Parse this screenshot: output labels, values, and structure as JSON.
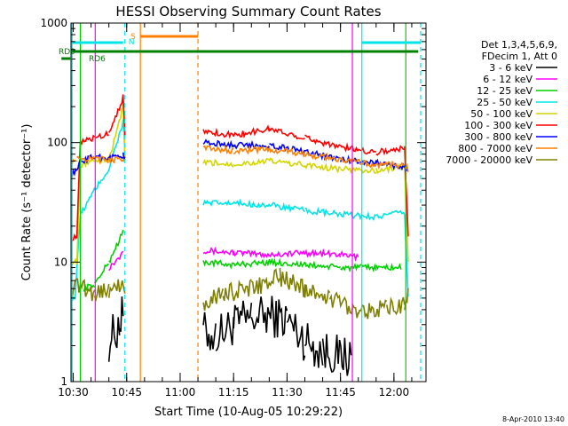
{
  "chart_data": {
    "type": "line",
    "title": "HESSI Observing Summary Count Rates",
    "xlabel": "Start Time (10-Aug-05 10:29:22)",
    "ylabel": "Count Rate (s⁻¹ detector⁻¹)",
    "y_scale": "log",
    "ylim": [
      1,
      1000
    ],
    "xlim": [
      "10:29:22",
      "12:09:00"
    ],
    "x_ticks": [
      "10:30",
      "10:45",
      "11:00",
      "11:15",
      "11:30",
      "11:45",
      "12:00"
    ],
    "y_ticks": [
      "1",
      "10",
      "100",
      "1000"
    ],
    "grid": false,
    "legend_position": "right",
    "legend_header": [
      "Det 1,3,4,5,6,9,",
      "FDecim 1, Att 0"
    ],
    "timestamp": "8-Apr-2010 13:40",
    "flags": {
      "rd0_label": "RD0",
      "rd6_label": "RD6",
      "s_label": "S",
      "n_label": "N",
      "rd0_intervals": [
        [
          "10:29:40",
          "12:06:50"
        ]
      ],
      "rd6_intervals": [
        [
          "10:29:40",
          "12:06:50"
        ]
      ],
      "saa_interval": [
        "10:48:50",
        "11:05:00"
      ],
      "night_intervals": [
        [
          "10:29:40",
          "10:44:00"
        ],
        [
          "11:51:00",
          "12:07:30"
        ]
      ]
    },
    "vertical_markers": [
      {
        "time": "10:29:40",
        "style": "solid",
        "color": "#00e5e5"
      },
      {
        "time": "10:44:30",
        "style": "dashed",
        "color": "#00e5e5"
      },
      {
        "time": "11:51:00",
        "style": "solid",
        "color": "#00e5e5"
      },
      {
        "time": "12:07:30",
        "style": "dashed",
        "color": "#00e5e5"
      },
      {
        "time": "10:48:50",
        "style": "solid",
        "color": "#ff8000"
      },
      {
        "time": "11:05:00",
        "style": "dashed",
        "color": "#ff8000"
      },
      {
        "time": "10:36:10",
        "style": "solid",
        "color": "#ff00ff"
      },
      {
        "time": "11:48:20",
        "style": "solid",
        "color": "#ff00ff"
      },
      {
        "time": "10:32:00",
        "style": "solid",
        "color": "#00d000"
      },
      {
        "time": "12:03:20",
        "style": "solid",
        "color": "#00d000"
      }
    ],
    "series": [
      {
        "name": "3 - 6 keV",
        "color": "#000000",
        "x": [
          "10:40:00",
          "10:43:00",
          "10:44:00",
          "11:06:30",
          "11:10:00",
          "11:15:00",
          "11:20:00",
          "11:25:00",
          "11:30:00",
          "11:35:00",
          "11:40:00",
          "11:44:00",
          "11:48:00"
        ],
        "y": [
          2.2,
          3.0,
          3.8,
          2.6,
          2.4,
          3.0,
          3.4,
          3.6,
          3.3,
          2.2,
          1.8,
          1.7,
          1.6
        ]
      },
      {
        "name": "6 - 12 keV",
        "color": "#ff00ff",
        "x": [
          "10:40:00",
          "10:43:00",
          "10:44:00",
          "11:06:30",
          "11:15:00",
          "11:25:00",
          "11:35:00",
          "11:45:00",
          "11:50:00"
        ],
        "y": [
          9,
          11,
          13,
          12.5,
          12,
          11.5,
          12,
          11.5,
          11
        ]
      },
      {
        "name": "12 - 25 keV",
        "color": "#00d000",
        "x": [
          "10:33:00",
          "10:36:00",
          "10:40:00",
          "10:44:00",
          "11:06:30",
          "11:15:00",
          "11:25:00",
          "11:35:00",
          "11:45:00",
          "11:55:00",
          "12:02:00"
        ],
        "y": [
          6,
          6.5,
          10,
          18,
          10,
          9.5,
          10,
          9.5,
          9,
          9,
          9
        ]
      },
      {
        "name": "25 - 50 keV",
        "color": "#00e5e5",
        "x": [
          "10:29:40",
          "10:30:30",
          "10:32:00",
          "10:36:00",
          "10:40:00",
          "10:44:00",
          "10:44:30",
          "11:06:30",
          "11:15:00",
          "11:25:00",
          "11:35:00",
          "11:45:00",
          "11:55:00",
          "12:03:00",
          "12:04:00"
        ],
        "y": [
          5,
          5,
          25,
          40,
          60,
          150,
          80,
          31,
          31,
          30,
          27,
          25,
          24,
          26,
          5
        ]
      },
      {
        "name": "50 - 100 keV",
        "color": "#d4d400",
        "x": [
          "10:29:40",
          "10:31:00",
          "10:32:00",
          "10:36:00",
          "10:40:00",
          "10:44:00",
          "10:44:30",
          "11:06:30",
          "11:15:00",
          "11:25:00",
          "11:35:00",
          "11:45:00",
          "11:55:00",
          "12:03:00",
          "12:04:00"
        ],
        "y": [
          10,
          10,
          65,
          72,
          70,
          200,
          72,
          68,
          66,
          70,
          65,
          60,
          58,
          63,
          10
        ]
      },
      {
        "name": "100 - 300 keV",
        "color": "#ff0000",
        "x": [
          "10:29:40",
          "10:31:00",
          "10:32:00",
          "10:36:00",
          "10:40:00",
          "10:44:00",
          "10:44:30",
          "11:06:30",
          "11:15:00",
          "11:25:00",
          "11:35:00",
          "11:45:00",
          "11:55:00",
          "12:03:00",
          "12:04:00"
        ],
        "y": [
          16,
          16,
          100,
          110,
          120,
          240,
          110,
          125,
          115,
          130,
          110,
          92,
          83,
          90,
          16
        ]
      },
      {
        "name": "300 - 800 keV",
        "color": "#0000ff",
        "x": [
          "10:29:40",
          "10:31:00",
          "10:32:00",
          "10:36:00",
          "10:40:00",
          "10:44:00",
          "10:44:30",
          "11:06:30",
          "11:15:00",
          "11:25:00",
          "11:35:00",
          "11:45:00",
          "11:55:00",
          "12:03:00",
          "12:04:00"
        ],
        "y": [
          55,
          58,
          70,
          76,
          75,
          78,
          75,
          100,
          95,
          95,
          85,
          72,
          68,
          62,
          55
        ]
      },
      {
        "name": "800 - 7000 keV",
        "color": "#ff8000",
        "x": [
          "10:29:40",
          "10:31:00",
          "10:32:00",
          "10:36:00",
          "10:40:00",
          "10:44:00",
          "10:44:30",
          "11:06:30",
          "11:15:00",
          "11:25:00",
          "11:35:00",
          "11:45:00",
          "11:55:00",
          "12:03:00",
          "12:04:00"
        ],
        "y": [
          70,
          72,
          72,
          73,
          72,
          73,
          72,
          90,
          85,
          88,
          80,
          72,
          65,
          65,
          60
        ]
      },
      {
        "name": "7000 - 20000 keV",
        "color": "#808000",
        "x": [
          "10:29:40",
          "10:32:00",
          "10:36:00",
          "10:40:00",
          "10:44:30",
          "11:06:30",
          "11:12:00",
          "11:20:00",
          "11:28:00",
          "11:35:00",
          "11:42:00",
          "11:50:00",
          "11:58:00",
          "12:03:00",
          "12:04:00"
        ],
        "y": [
          6,
          6.5,
          5.5,
          6,
          6,
          4.5,
          5.5,
          6,
          7.5,
          6,
          5,
          4,
          4,
          4.5,
          6
        ]
      }
    ]
  }
}
